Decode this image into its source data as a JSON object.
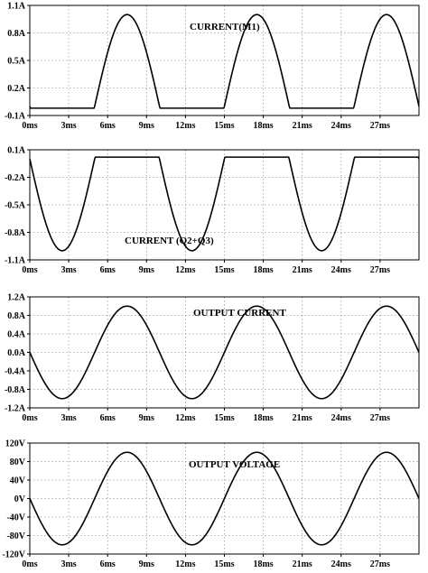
{
  "chart_data": [
    {
      "type": "line",
      "title": "CURRENT(M1)",
      "xlim": [
        0,
        30
      ],
      "ylim": [
        -0.1,
        1.1
      ],
      "y_ticks": [
        -0.1,
        0.2,
        0.5,
        0.8,
        1.1
      ],
      "y_tick_labels": [
        "-0.1A",
        "0.2A",
        "0.5A",
        "0.8A",
        "1.1A"
      ],
      "x_ticks": [
        0,
        3,
        6,
        9,
        12,
        15,
        18,
        21,
        24,
        27
      ],
      "x_tick_labels": [
        "0ms",
        "3ms",
        "6ms",
        "9ms",
        "12ms",
        "15ms",
        "18ms",
        "21ms",
        "24ms",
        "27ms"
      ],
      "grid": true,
      "series": [
        {
          "waveform": "half-wave positive",
          "amplitude": 1.0,
          "floor": -0.02,
          "period_ms": 10,
          "peak_times_ms": [
            7.5,
            17.5,
            27.5
          ],
          "x_range_ms": [
            0,
            30
          ]
        }
      ]
    },
    {
      "type": "line",
      "title": "CURRENT (Q2+Q3)",
      "xlim": [
        0,
        30
      ],
      "ylim": [
        -1.1,
        0.1
      ],
      "y_ticks": [
        -1.1,
        -0.8,
        -0.5,
        -0.2,
        0.1
      ],
      "y_tick_labels": [
        "-1.1A",
        "-0.8A",
        "-0.5A",
        "-0.2A",
        "0.1A"
      ],
      "x_ticks": [
        0,
        3,
        6,
        9,
        12,
        15,
        18,
        21,
        24,
        27
      ],
      "x_tick_labels": [
        "0ms",
        "3ms",
        "6ms",
        "9ms",
        "12ms",
        "15ms",
        "18ms",
        "21ms",
        "24ms",
        "27ms"
      ],
      "grid": true,
      "series": [
        {
          "waveform": "half-wave negative",
          "amplitude": -1.0,
          "floor": 0.02,
          "period_ms": 10,
          "trough_times_ms": [
            2.5,
            12.5,
            22.5
          ],
          "x_range_ms": [
            0,
            30
          ]
        }
      ]
    },
    {
      "type": "line",
      "title": "OUTPUT CURRENT",
      "xlim": [
        0,
        30
      ],
      "ylim": [
        -1.2,
        1.2
      ],
      "y_ticks": [
        -1.2,
        -0.8,
        -0.4,
        0.0,
        0.4,
        0.8,
        1.2
      ],
      "y_tick_labels": [
        "-1.2A",
        "-0.8A",
        "-0.4A",
        "0.0A",
        "0.4A",
        "0.8A",
        "1.2A"
      ],
      "x_ticks": [
        0,
        3,
        6,
        9,
        12,
        15,
        18,
        21,
        24,
        27
      ],
      "x_tick_labels": [
        "0ms",
        "3ms",
        "6ms",
        "9ms",
        "12ms",
        "15ms",
        "18ms",
        "21ms",
        "24ms",
        "27ms"
      ],
      "grid": true,
      "series": [
        {
          "waveform": "sine",
          "amplitude": 1.0,
          "period_ms": 10,
          "phase": "starts at 0 going negative",
          "x_range_ms": [
            0,
            30
          ]
        }
      ]
    },
    {
      "type": "line",
      "title": "OUTPUT VOLTAGE",
      "xlim": [
        0,
        30
      ],
      "ylim": [
        -120,
        120
      ],
      "y_ticks": [
        -120,
        -80,
        -40,
        0,
        40,
        80,
        120
      ],
      "y_tick_labels": [
        "-120V",
        "-80V",
        "-40V",
        "0V",
        "40V",
        "80V",
        "120V"
      ],
      "x_ticks": [
        0,
        3,
        6,
        9,
        12,
        15,
        18,
        21,
        24,
        27
      ],
      "x_tick_labels": [
        "0ms",
        "3ms",
        "6ms",
        "9ms",
        "12ms",
        "15ms",
        "18ms",
        "21ms",
        "24ms",
        "27ms"
      ],
      "grid": true,
      "series": [
        {
          "waveform": "sine",
          "amplitude": 100,
          "period_ms": 10,
          "phase": "starts at 0 going negative",
          "x_range_ms": [
            0,
            30
          ]
        }
      ]
    }
  ]
}
